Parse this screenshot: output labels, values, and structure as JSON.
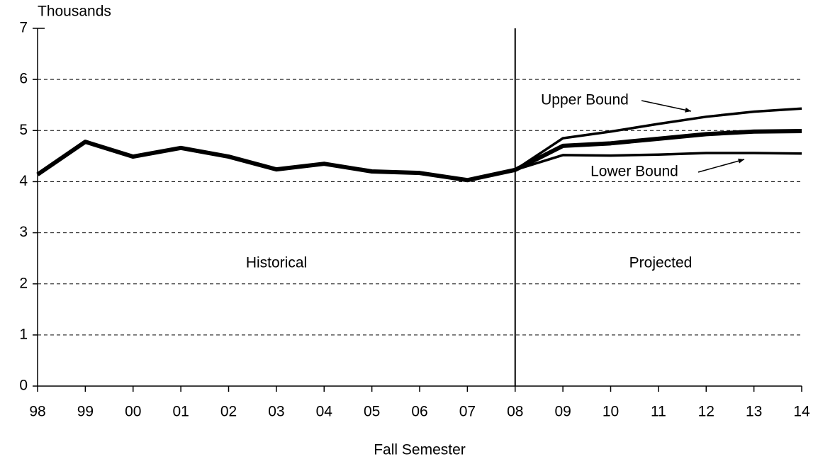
{
  "chart_data": {
    "type": "line",
    "y_axis_label": "Thousands",
    "x_axis_label": "Fall Semester",
    "categories": [
      "98",
      "99",
      "00",
      "01",
      "02",
      "03",
      "04",
      "05",
      "06",
      "07",
      "08",
      "09",
      "10",
      "11",
      "12",
      "13",
      "14"
    ],
    "series": [
      {
        "color": "#000000",
        "values": [
          4.14,
          4.78,
          4.49,
          4.66,
          4.49,
          4.24,
          4.35,
          4.2,
          4.17,
          4.03,
          4.23,
          4.7,
          4.75,
          4.84,
          4.93,
          4.98,
          4.99
        ]
      },
      {
        "name": "Upper Bound",
        "color": "#000000",
        "values": [
          null,
          null,
          null,
          null,
          null,
          null,
          null,
          null,
          null,
          null,
          4.23,
          4.85,
          4.98,
          5.13,
          5.27,
          5.37,
          5.43
        ]
      },
      {
        "name": "Lower Bound",
        "color": "#000000",
        "values": [
          null,
          null,
          null,
          null,
          null,
          null,
          null,
          null,
          null,
          null,
          4.23,
          4.52,
          4.51,
          4.53,
          4.56,
          4.56,
          4.55
        ]
      }
    ],
    "annotations": [
      "Historical",
      "Projected"
    ],
    "ylim": [
      0,
      7
    ],
    "yticks": [
      0,
      1,
      2,
      3,
      4,
      5,
      6,
      7
    ],
    "grid": true
  }
}
